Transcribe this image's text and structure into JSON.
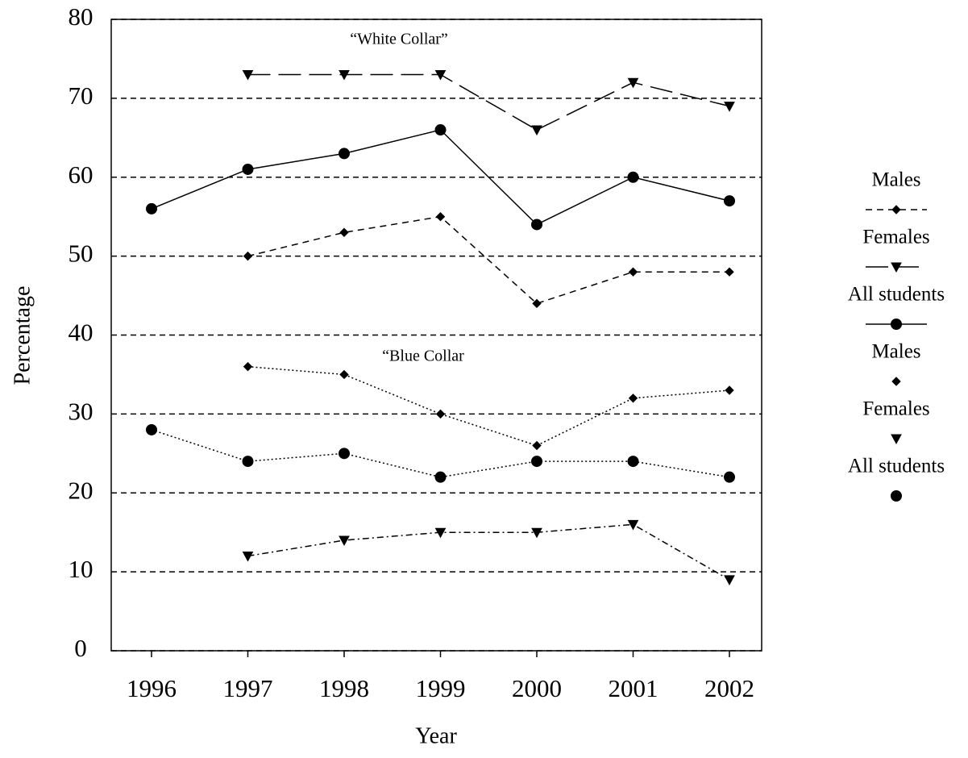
{
  "chart_data": {
    "type": "line",
    "x_label": "Year",
    "y_label": "Percentage",
    "categories": [
      "1996",
      "1997",
      "1998",
      "1999",
      "2000",
      "2001",
      "2002"
    ],
    "ylim": [
      0,
      80
    ],
    "yticks": [
      0,
      10,
      20,
      30,
      40,
      50,
      60,
      70,
      80
    ],
    "grid": true,
    "legend": "right",
    "annotations": [
      "“White Collar”",
      "“Blue Collar"
    ],
    "series": [
      {
        "name": "Males",
        "color": "#000000",
        "line_style": "dashed",
        "marker": "diamond",
        "legend_line": true,
        "values": [
          null,
          50,
          53,
          55,
          44,
          48,
          48
        ]
      },
      {
        "name": "Females",
        "color": "#000000",
        "line_style": "long-dash",
        "marker": "triangle-down",
        "legend_line": true,
        "values": [
          null,
          73,
          73,
          73,
          66,
          72,
          69
        ]
      },
      {
        "name": "All students",
        "color": "#000000",
        "line_style": "solid",
        "marker": "circle",
        "legend_line": true,
        "values": [
          56,
          61,
          63,
          66,
          54,
          60,
          57
        ]
      },
      {
        "name": "Males",
        "color": "#000000",
        "line_style": "dotted",
        "marker": "diamond",
        "legend_line": false,
        "values": [
          null,
          36,
          35,
          30,
          26,
          32,
          33
        ]
      },
      {
        "name": "Females",
        "color": "#000000",
        "line_style": "dash-dot",
        "marker": "triangle-down",
        "legend_line": false,
        "values": [
          null,
          12,
          14,
          15,
          15,
          16,
          9
        ]
      },
      {
        "name": "All students",
        "color": "#000000",
        "line_style": "dotted",
        "marker": "circle",
        "legend_line": false,
        "values": [
          28,
          24,
          25,
          22,
          24,
          24,
          22
        ]
      }
    ]
  }
}
